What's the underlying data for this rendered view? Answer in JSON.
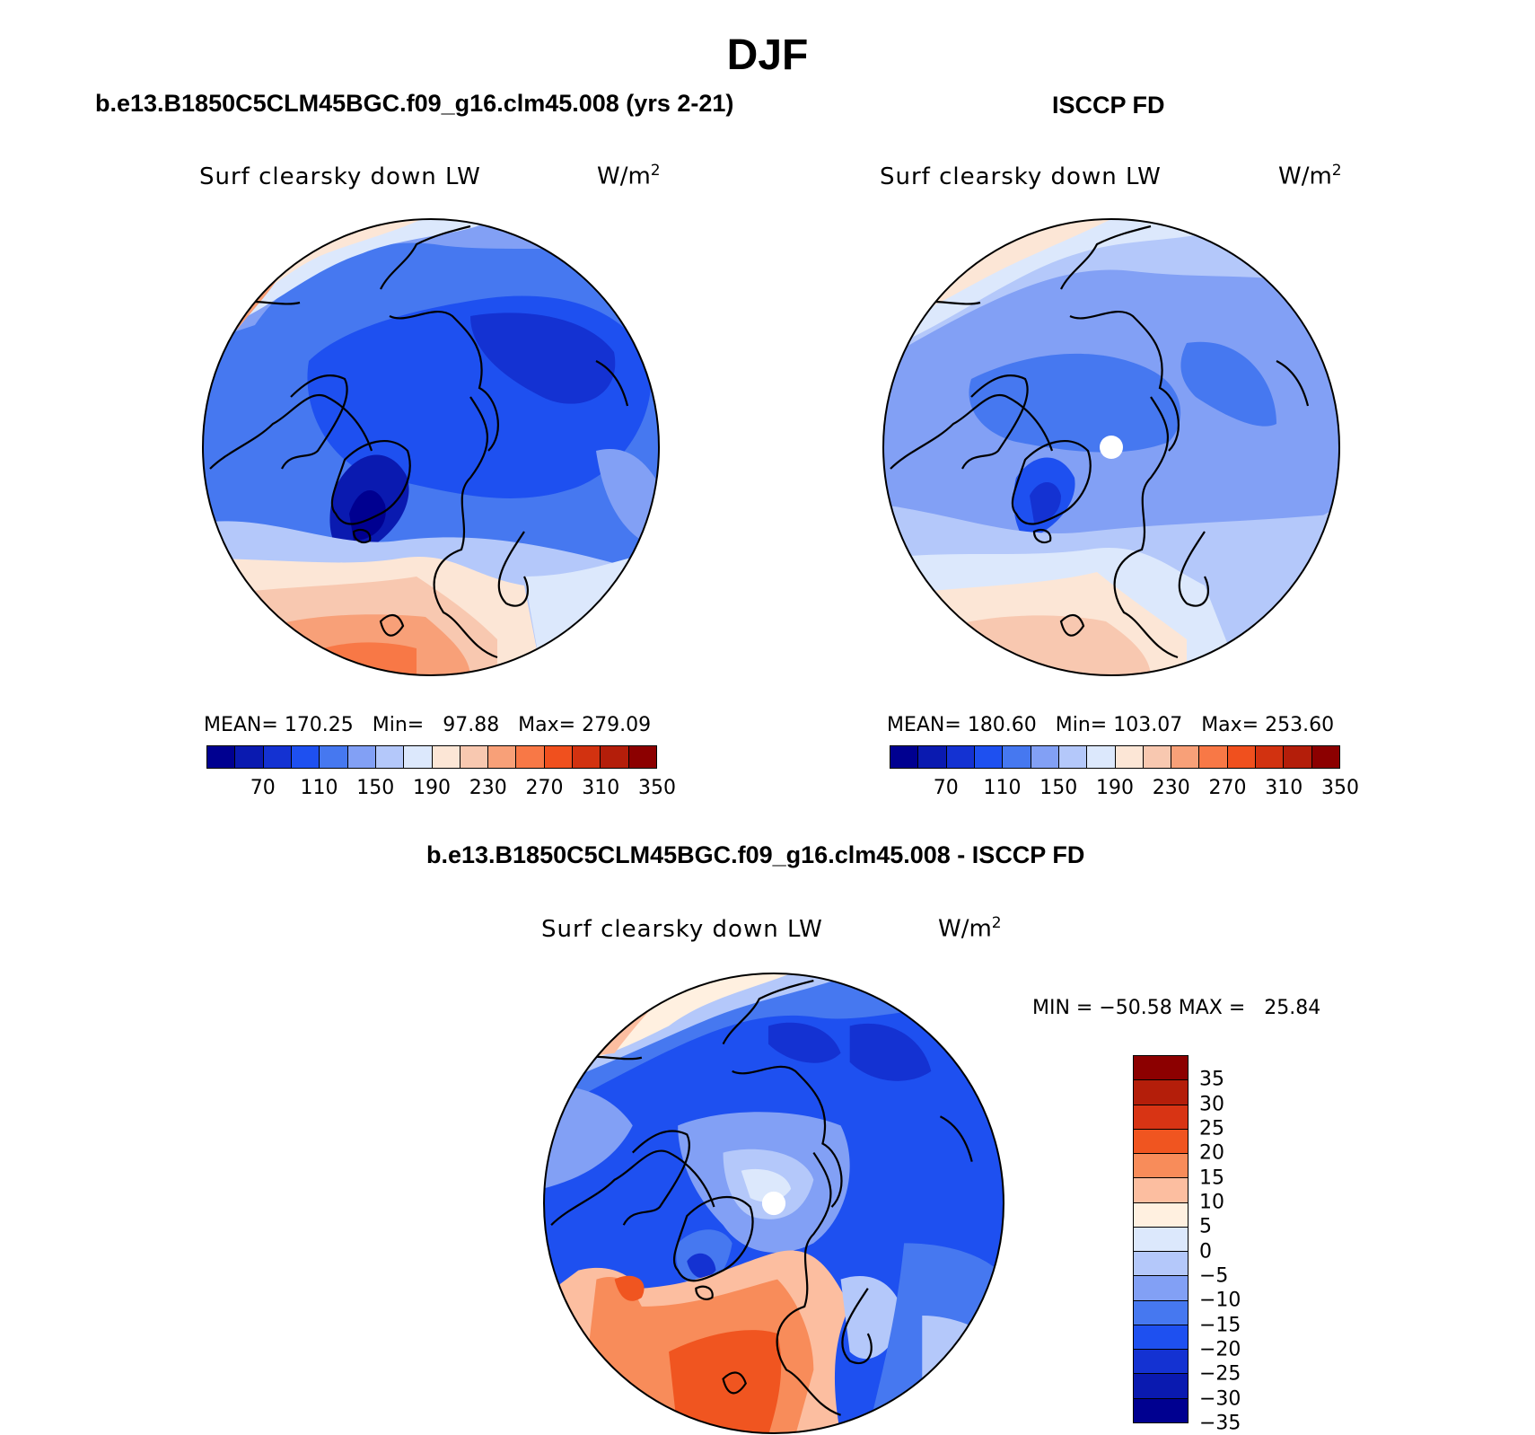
{
  "season": "DJF",
  "panels": {
    "model": {
      "title": "b.e13.B1850C5CLM45BGC.f09_g16.clm45.008 (yrs 2-21)",
      "variable": "Surf clearsky down LW",
      "units_base": "W/m",
      "units_exp": "2",
      "stats": "MEAN= 170.25   Min=   97.88   Max= 279.09"
    },
    "obs": {
      "title": "ISCCP FD",
      "variable": "Surf clearsky down LW",
      "units_base": "W/m",
      "units_exp": "2",
      "stats": "MEAN= 180.60   Min= 103.07   Max= 253.60"
    },
    "diff": {
      "title": "b.e13.B1850C5CLM45BGC.f09_g16.clm45.008 - ISCCP FD",
      "variable": "Surf clearsky down LW",
      "units_base": "W/m",
      "units_exp": "2",
      "stats": "MIN = −50.58 MAX =   25.84"
    }
  },
  "colorbar_abs": {
    "colors": [
      "#000090",
      "#0a1ab0",
      "#1432d2",
      "#1e50f0",
      "#4678f0",
      "#82a0f5",
      "#b4c8fa",
      "#dce8fc",
      "#fce6d6",
      "#f8c8b0",
      "#f8a078",
      "#f87846",
      "#f0501e",
      "#d23210",
      "#b41e0a",
      "#8c0000"
    ],
    "tick_labels": [
      "70",
      "110",
      "150",
      "190",
      "230",
      "270",
      "310",
      "350"
    ]
  },
  "colorbar_diff": {
    "colors_top_to_bottom": [
      "#8c0000",
      "#b41e0a",
      "#d83414",
      "#f05520",
      "#f88c5a",
      "#fcbea0",
      "#fff0e0",
      "#dce8fc",
      "#b4c8fa",
      "#82a0f5",
      "#4678f0",
      "#1e50f0",
      "#1432d2",
      "#0a1ab0",
      "#000090"
    ],
    "tick_labels": [
      "35",
      "30",
      "25",
      "20",
      "15",
      "10",
      "5",
      "0",
      "−5",
      "−10",
      "−15",
      "−20",
      "−25",
      "−30",
      "−35"
    ]
  },
  "legend_colors": {
    "coastline": "#000000",
    "missing": "#ffffff"
  }
}
